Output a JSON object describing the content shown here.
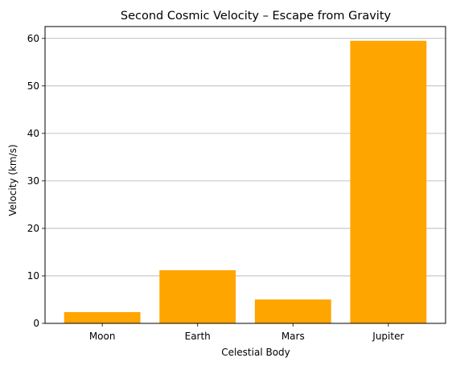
{
  "chart_data": {
    "type": "bar",
    "title": "Second Cosmic Velocity – Escape from Gravity",
    "xlabel": "Celestial Body",
    "ylabel": "Velocity (km/s)",
    "categories": [
      "Moon",
      "Earth",
      "Mars",
      "Jupiter"
    ],
    "values": [
      2.38,
      11.19,
      5.03,
      59.5
    ],
    "ylim": [
      0,
      62.5
    ],
    "yticks": [
      0,
      10,
      20,
      30,
      40,
      50,
      60
    ],
    "grid": "y",
    "bar_color": "#ffa500",
    "grid_color": "#b0b0b0"
  }
}
